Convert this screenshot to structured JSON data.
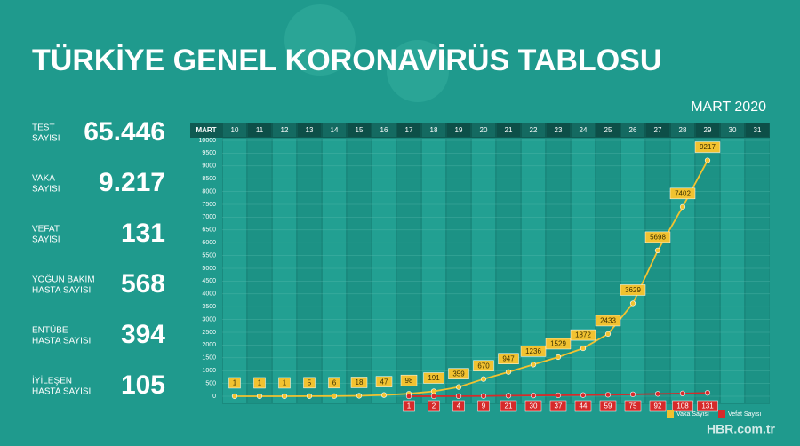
{
  "title": "TÜRKİYE GENEL KORONAVİRÜS TABLOSU",
  "stats": [
    {
      "label": [
        "TEST",
        "SAYISI"
      ],
      "value": "65.446"
    },
    {
      "label": [
        "VAKA",
        "SAYISI"
      ],
      "value": "9.217"
    },
    {
      "label": [
        "VEFAT",
        "SAYISI"
      ],
      "value": "131"
    },
    {
      "label": [
        "YOĞUN BAKIM",
        "HASTA SAYISI"
      ],
      "value": "568"
    },
    {
      "label": [
        "ENTÜBE",
        "HASTA SAYISI"
      ],
      "value": "394"
    },
    {
      "label": [
        "İYİLEŞEN",
        "HASTA SAYISI"
      ],
      "value": "105"
    }
  ],
  "watermark": "HBR.com.tr",
  "chart_data": {
    "type": "line",
    "period": "MART 2020",
    "month_label": "MART",
    "categories": [
      "10",
      "11",
      "12",
      "13",
      "14",
      "15",
      "16",
      "17",
      "18",
      "19",
      "20",
      "21",
      "22",
      "23",
      "24",
      "25",
      "26",
      "27",
      "28",
      "29",
      "30",
      "31"
    ],
    "series": [
      {
        "name": "Vaka Sayısı",
        "color": "#f2c230",
        "values": [
          1,
          1,
          1,
          5,
          6,
          18,
          47,
          98,
          191,
          359,
          670,
          947,
          1236,
          1529,
          1872,
          2433,
          3629,
          5698,
          7402,
          9217,
          null,
          null
        ]
      },
      {
        "name": "Vefat Sayısı",
        "color": "#d62a2a",
        "values": [
          null,
          null,
          null,
          null,
          null,
          null,
          null,
          1,
          2,
          4,
          9,
          21,
          30,
          37,
          44,
          59,
          75,
          92,
          108,
          131,
          null,
          null
        ]
      }
    ],
    "ylim": [
      0,
      10000
    ],
    "yticks": [
      0,
      500,
      1000,
      1500,
      2000,
      2500,
      3000,
      3500,
      4000,
      4500,
      5000,
      5500,
      6000,
      6500,
      7000,
      7500,
      8000,
      8500,
      9000,
      9500,
      10000
    ],
    "grid": true,
    "legend": "bottom-right"
  }
}
